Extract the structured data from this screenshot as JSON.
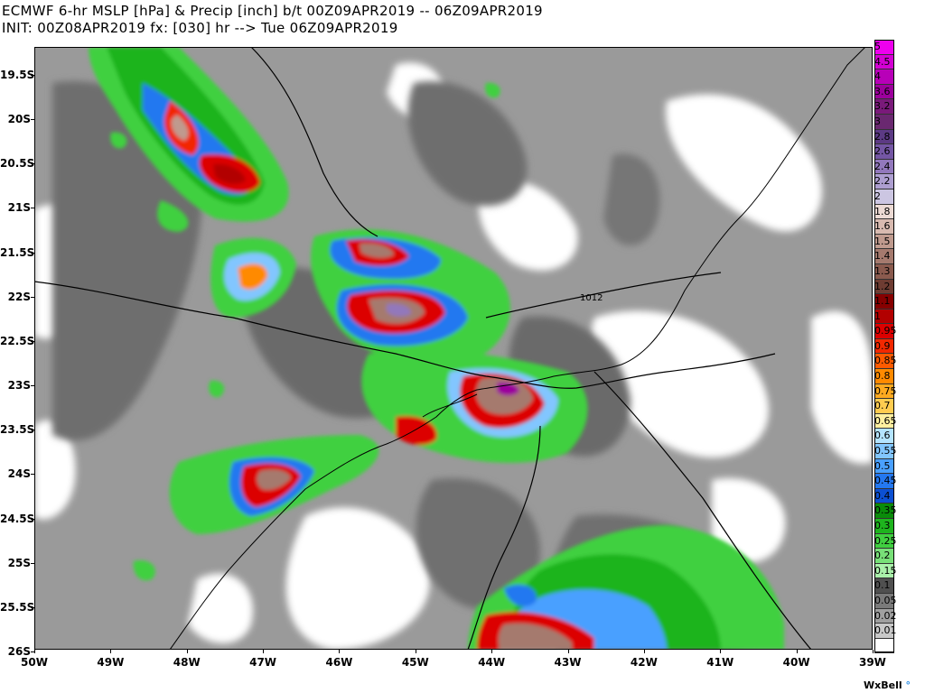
{
  "header": {
    "line1": "ECMWF 6-hr MSLP [hPa] & Precip [inch] b/t 00Z09APR2019 -- 06Z09APR2019",
    "line2": "INIT: 00Z08APR2019 fx: [030] hr --> Tue 06Z09APR2019"
  },
  "map": {
    "lat_labels": [
      "19.5S",
      "20S",
      "20.5S",
      "21S",
      "21.5S",
      "22S",
      "22.5S",
      "23S",
      "23.5S",
      "24S",
      "24.5S",
      "25S",
      "25.5S",
      "26S"
    ],
    "lon_labels": [
      "50W",
      "49W",
      "48W",
      "47W",
      "46W",
      "45W",
      "44W",
      "43W",
      "42W",
      "41W",
      "40W",
      "39W"
    ],
    "isobar_label": "1012",
    "extent": {
      "lon_min": -50,
      "lon_max": -39,
      "lat_min": -26,
      "lat_max": -19.2
    }
  },
  "legend": {
    "levels": [
      {
        "label": "5",
        "color": "#ee00ee"
      },
      {
        "label": "4.5",
        "color": "#d400d4"
      },
      {
        "label": "4",
        "color": "#b800b8"
      },
      {
        "label": "3.6",
        "color": "#9c009c"
      },
      {
        "label": "3.2",
        "color": "#7a1a7a"
      },
      {
        "label": "3",
        "color": "#6a2870"
      },
      {
        "label": "2.8",
        "color": "#5c3a84"
      },
      {
        "label": "2.6",
        "color": "#7456a4"
      },
      {
        "label": "2.4",
        "color": "#9278bc"
      },
      {
        "label": "2.2",
        "color": "#ad9ed0"
      },
      {
        "label": "2",
        "color": "#ccc6e2"
      },
      {
        "label": "1.8",
        "color": "#ecdad4"
      },
      {
        "label": "1.6",
        "color": "#d8bab0"
      },
      {
        "label": "1.5",
        "color": "#bf9a8e"
      },
      {
        "label": "1.4",
        "color": "#a57a6e"
      },
      {
        "label": "1.3",
        "color": "#8a5a4e"
      },
      {
        "label": "1.2",
        "color": "#6e3c32"
      },
      {
        "label": "1.1",
        "color": "#860000"
      },
      {
        "label": "1",
        "color": "#b20000"
      },
      {
        "label": "0.95",
        "color": "#dc0000"
      },
      {
        "label": "0.9",
        "color": "#f22800"
      },
      {
        "label": "0.85",
        "color": "#ff5a00"
      },
      {
        "label": "0.8",
        "color": "#ff8a00"
      },
      {
        "label": "0.75",
        "color": "#ffaa20"
      },
      {
        "label": "0.7",
        "color": "#ffcc50"
      },
      {
        "label": "0.65",
        "color": "#fff0a0"
      },
      {
        "label": "0.6",
        "color": "#b4e4ff"
      },
      {
        "label": "0.55",
        "color": "#82c6ff"
      },
      {
        "label": "0.5",
        "color": "#4aa0ff"
      },
      {
        "label": "0.45",
        "color": "#2478f0"
      },
      {
        "label": "0.4",
        "color": "#0c50d2"
      },
      {
        "label": "0.35",
        "color": "#0a8c0a"
      },
      {
        "label": "0.3",
        "color": "#1eb41e"
      },
      {
        "label": "0.25",
        "color": "#40d040"
      },
      {
        "label": "0.2",
        "color": "#78e078"
      },
      {
        "label": "0.15",
        "color": "#aaf0aa"
      },
      {
        "label": "0.1",
        "color": "#505050"
      },
      {
        "label": "0.05",
        "color": "#7a7a7a"
      },
      {
        "label": "0.02",
        "color": "#a0a0a0"
      },
      {
        "label": "0.01",
        "color": "#c8c8c8"
      },
      {
        "label": "",
        "color": "#ffffff"
      }
    ]
  },
  "watermark": {
    "text": "WxBell",
    "mark": "°"
  }
}
